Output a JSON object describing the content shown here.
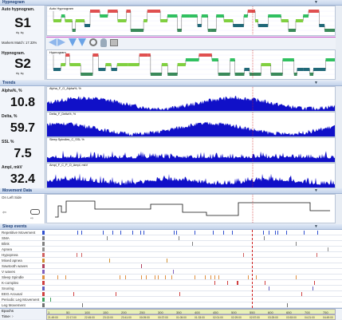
{
  "sections": {
    "hypnogram": "Hypnogram",
    "trends": "Trends",
    "movement": "Movement Data",
    "events": "Sleep events"
  },
  "hypno1": {
    "title": "Auto hypnogram.",
    "stage": "S1",
    "plot_label": "Auto Hypnogram",
    "match": "Markers Match: 17.33%"
  },
  "hypno2": {
    "title": "Hypnogram.",
    "stage": "S2",
    "plot_label": "Hypnogram"
  },
  "trends": [
    {
      "label": "Alpha%, %",
      "value": "10.8",
      "plot_label": "Alpha_F_O_Alpha%, %"
    },
    {
      "label": "Delta, %",
      "value": "59.7",
      "plot_label": "Delta_F_Delta%, %"
    },
    {
      "label": "SSL %",
      "value": "7.5",
      "plot_label": "Sleep Spindles_C_SSL %"
    },
    {
      "label": "Ampl, mkV",
      "value": "32.4",
      "plot_label": "Ampl_F_C_P_O_Ampl, mkV"
    }
  ],
  "movement": {
    "position": "On Left Side"
  },
  "events": [
    "Repetitive Movement",
    "SMA",
    "Blink",
    "Apnea",
    "Hypopnea",
    "Mixed apnea",
    "Sawtooth waves",
    "V waves",
    "Sleep Spindle",
    "K-complex",
    "Snoring",
    "EEG Arousal",
    "Periodic Leg Movement",
    "Leg Movement"
  ],
  "timeline": {
    "epochs_label": "Epochs",
    "time_label": "Time",
    "epochs": [
      "1",
      "50",
      "100",
      "150",
      "200",
      "250",
      "300",
      "350",
      "400",
      "450",
      "500",
      "550",
      "600",
      "650",
      "700",
      "750"
    ],
    "times": [
      "21:49:00",
      "22:17:00",
      "22:45:00",
      "23:13:00",
      "23:41:00",
      "00:09:00",
      "00:37:00",
      "01:05:00",
      "01:33:00",
      "02:01:00",
      "02:29:00",
      "02:57:00",
      "03:25:00",
      "03:53:00",
      "04:21:00",
      "04:49:00"
    ]
  },
  "colors": {
    "accent": "#1c3f78",
    "trend_fill": "#1010c8",
    "wake": "#e05050",
    "rem": "#30c060",
    "light": "#80d040",
    "deep": "#206878"
  }
}
